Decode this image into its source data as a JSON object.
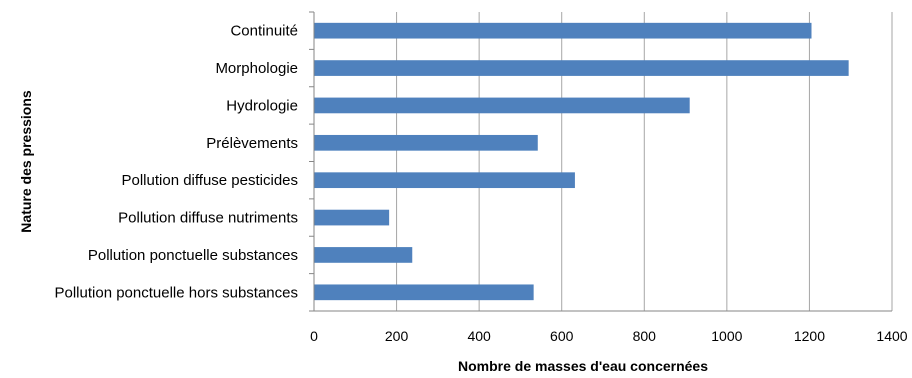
{
  "chart_data": {
    "type": "bar",
    "orientation": "horizontal",
    "categories": [
      "Continuité",
      "Morphologie",
      "Hydrologie",
      "Prélèvements",
      "Pollution diffuse pesticides",
      "Pollution diffuse nutriments",
      "Pollution ponctuelle substances",
      "Pollution ponctuelle hors substances"
    ],
    "values": [
      1205,
      1295,
      910,
      542,
      632,
      182,
      238,
      532
    ],
    "xlabel": "Nombre de masses d'eau concernées",
    "ylabel": "Nature des pressions",
    "xlim": [
      0,
      1400
    ],
    "xticks": [
      0,
      200,
      400,
      600,
      800,
      1000,
      1200,
      1400
    ],
    "grid": "vertical",
    "legend": "none",
    "bar_color": "#4f81bd"
  }
}
